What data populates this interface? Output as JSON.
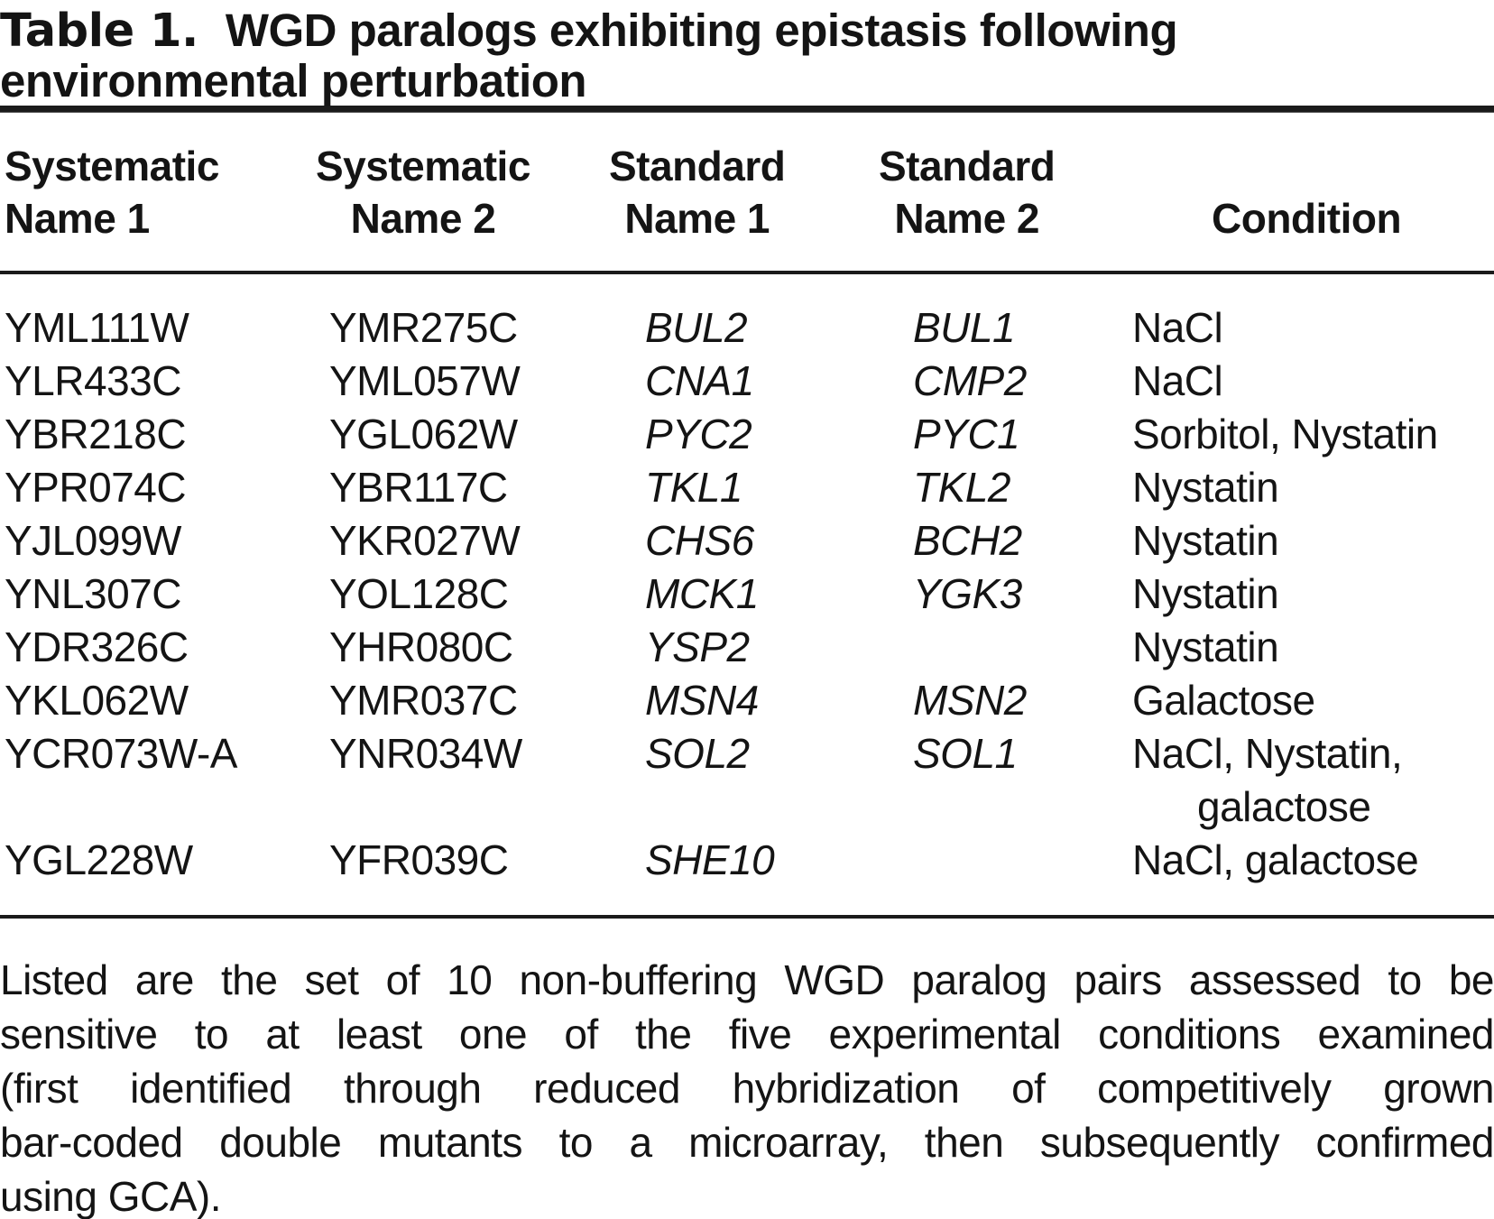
{
  "heading": {
    "label": "Table 1.",
    "title_line1": "WGD paralogs exhibiting epistasis following",
    "title_line2": "environmental perturbation"
  },
  "columns": {
    "col1": {
      "line1": "Systematic",
      "line2": "Name 1"
    },
    "col2": {
      "line1": "Systematic",
      "line2": "Name 2"
    },
    "col3": {
      "line1": "Standard",
      "line2": "Name 1"
    },
    "col4": {
      "line1": "Standard",
      "line2": "Name 2"
    },
    "col5": {
      "line1": "Condition"
    }
  },
  "rows": [
    {
      "sys1": "YML111W",
      "sys2": "YMR275C",
      "std1": "BUL2",
      "std2": "BUL1",
      "condition": "NaCl"
    },
    {
      "sys1": "YLR433C",
      "sys2": "YML057W",
      "std1": "CNA1",
      "std2": "CMP2",
      "condition": "NaCl"
    },
    {
      "sys1": "YBR218C",
      "sys2": "YGL062W",
      "std1": "PYC2",
      "std2": "PYC1",
      "condition": "Sorbitol, Nystatin"
    },
    {
      "sys1": "YPR074C",
      "sys2": "YBR117C",
      "std1": "TKL1",
      "std2": "TKL2",
      "condition": "Nystatin"
    },
    {
      "sys1": "YJL099W",
      "sys2": "YKR027W",
      "std1": "CHS6",
      "std2": "BCH2",
      "condition": "Nystatin"
    },
    {
      "sys1": "YNL307C",
      "sys2": "YOL128C",
      "std1": "MCK1",
      "std2": "YGK3",
      "condition": "Nystatin"
    },
    {
      "sys1": "YDR326C",
      "sys2": "YHR080C",
      "std1": "YSP2",
      "std2": "",
      "condition": "Nystatin"
    },
    {
      "sys1": "YKL062W",
      "sys2": "YMR037C",
      "std1": "MSN4",
      "std2": "MSN2",
      "condition": "Galactose"
    },
    {
      "sys1": "YCR073W-A",
      "sys2": "YNR034W",
      "std1": "SOL2",
      "std2": "SOL1",
      "condition": "NaCl, Nystatin,",
      "condition_wrap": "galactose"
    },
    {
      "sys1": "YGL228W",
      "sys2": "YFR039C",
      "std1": "SHE10",
      "std2": "",
      "condition": "NaCl, galactose"
    }
  ],
  "caption_lines": [
    "Listed are the set of 10 non-buffering WGD paralog pairs assessed to be",
    "sensitive to at least one of the five experimental conditions examined",
    "(first identified through reduced hybridization of competitively grown",
    "bar-coded double mutants to a microarray, then subsequently confirmed",
    "using GCA)."
  ],
  "colors": {
    "text": "#141414",
    "rule": "#1b1b1b",
    "background": "#ffffff"
  }
}
